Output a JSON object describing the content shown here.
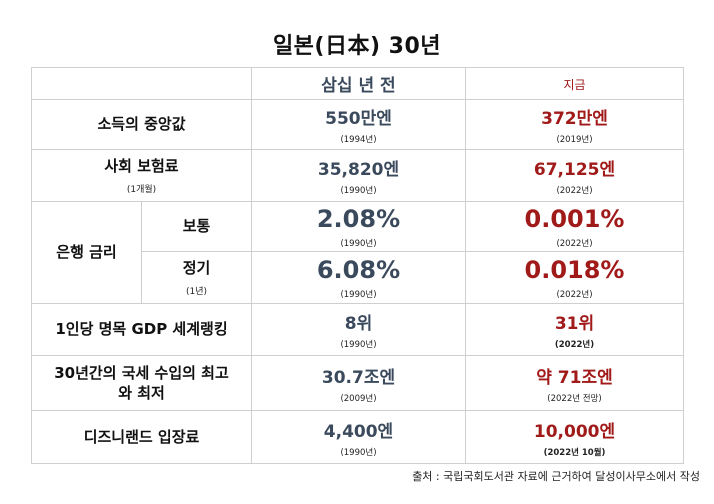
{
  "title": "일본(日本) 30년",
  "header": {
    "then": "삼십 년 전",
    "now": "지금"
  },
  "rows": {
    "income": {
      "label": "소득의 중앙값",
      "then": "550만엔",
      "then_year": "(1994년)",
      "now": "372만엔",
      "now_year": "(2019년)"
    },
    "insurance": {
      "label": "사회 보험료",
      "sub": "(1개월)",
      "then": "35,820엔",
      "then_year": "(1990년)",
      "now": "67,125엔",
      "now_year": "(2022년)"
    },
    "bank": {
      "label": "은행 금리",
      "normal": {
        "label": "보통",
        "then": "2.08%",
        "then_year": "(1990년)",
        "now": "0.001%",
        "now_year": "(2022년)"
      },
      "fixed": {
        "label": "정기",
        "sub": "(1년)",
        "then": "6.08%",
        "then_year": "(1990년)",
        "now": "0.018%",
        "now_year": "(2022년)"
      }
    },
    "gdp": {
      "label": "1인당 명목 GDP 세계랭킹",
      "then": "8위",
      "then_year": "(1990년)",
      "now": "31위",
      "now_year": "(2022년)"
    },
    "tax": {
      "label": "30년간의 국세 수입의 최고와 최저",
      "then": "30.7조엔",
      "then_year": "(2009년)",
      "now": "약 71조엔",
      "now_year": "(2022년 전망)"
    },
    "disney": {
      "label": "디즈니랜드 입장료",
      "then": "4,400엔",
      "then_year": "(1990년)",
      "now": "10,000엔",
      "now_year": "(2022년 10월)"
    }
  },
  "source": "출처 : 국립국회도서관 자료에 근거하여 달성이사무소에서 작성",
  "colors": {
    "then": "#3a4a5c",
    "now": "#a11a1a",
    "border": "#cfcfcf"
  }
}
